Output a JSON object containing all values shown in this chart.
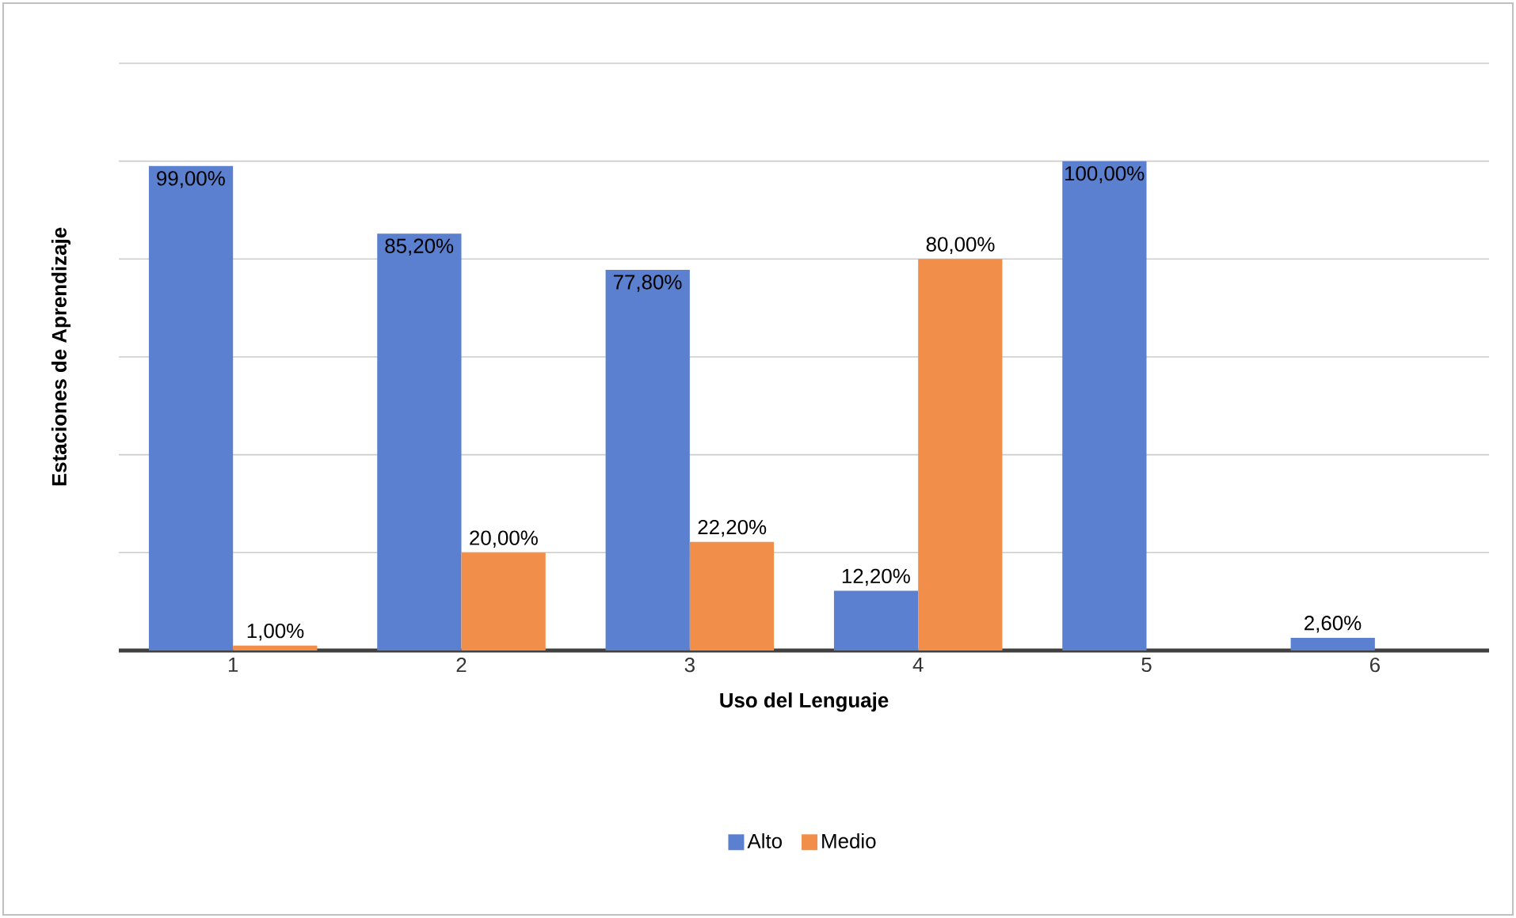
{
  "chart_data": {
    "type": "bar",
    "xlabel": "Uso del Lenguaje",
    "ylabel": "Estaciones de Aprendizaje",
    "categories": [
      "1",
      "2",
      "3",
      "4",
      "5",
      "6"
    ],
    "series": [
      {
        "name": "Alto",
        "color": "#5b80d0",
        "values": [
          99,
          85.2,
          77.8,
          12.2,
          100,
          2.6
        ],
        "value_labels": [
          "99,00%",
          "85,20%",
          "77,80%",
          "12,20%",
          "100,00%",
          "2,60%"
        ]
      },
      {
        "name": "Medio",
        "color": "#f08e4a",
        "values": [
          1,
          20,
          22.2,
          80,
          null,
          null
        ],
        "value_labels": [
          "1,00%",
          "20,00%",
          "22,20%",
          "80,00%",
          null,
          null
        ]
      }
    ],
    "tick_labels": "x",
    "grid": "y",
    "legend": "bottom"
  }
}
